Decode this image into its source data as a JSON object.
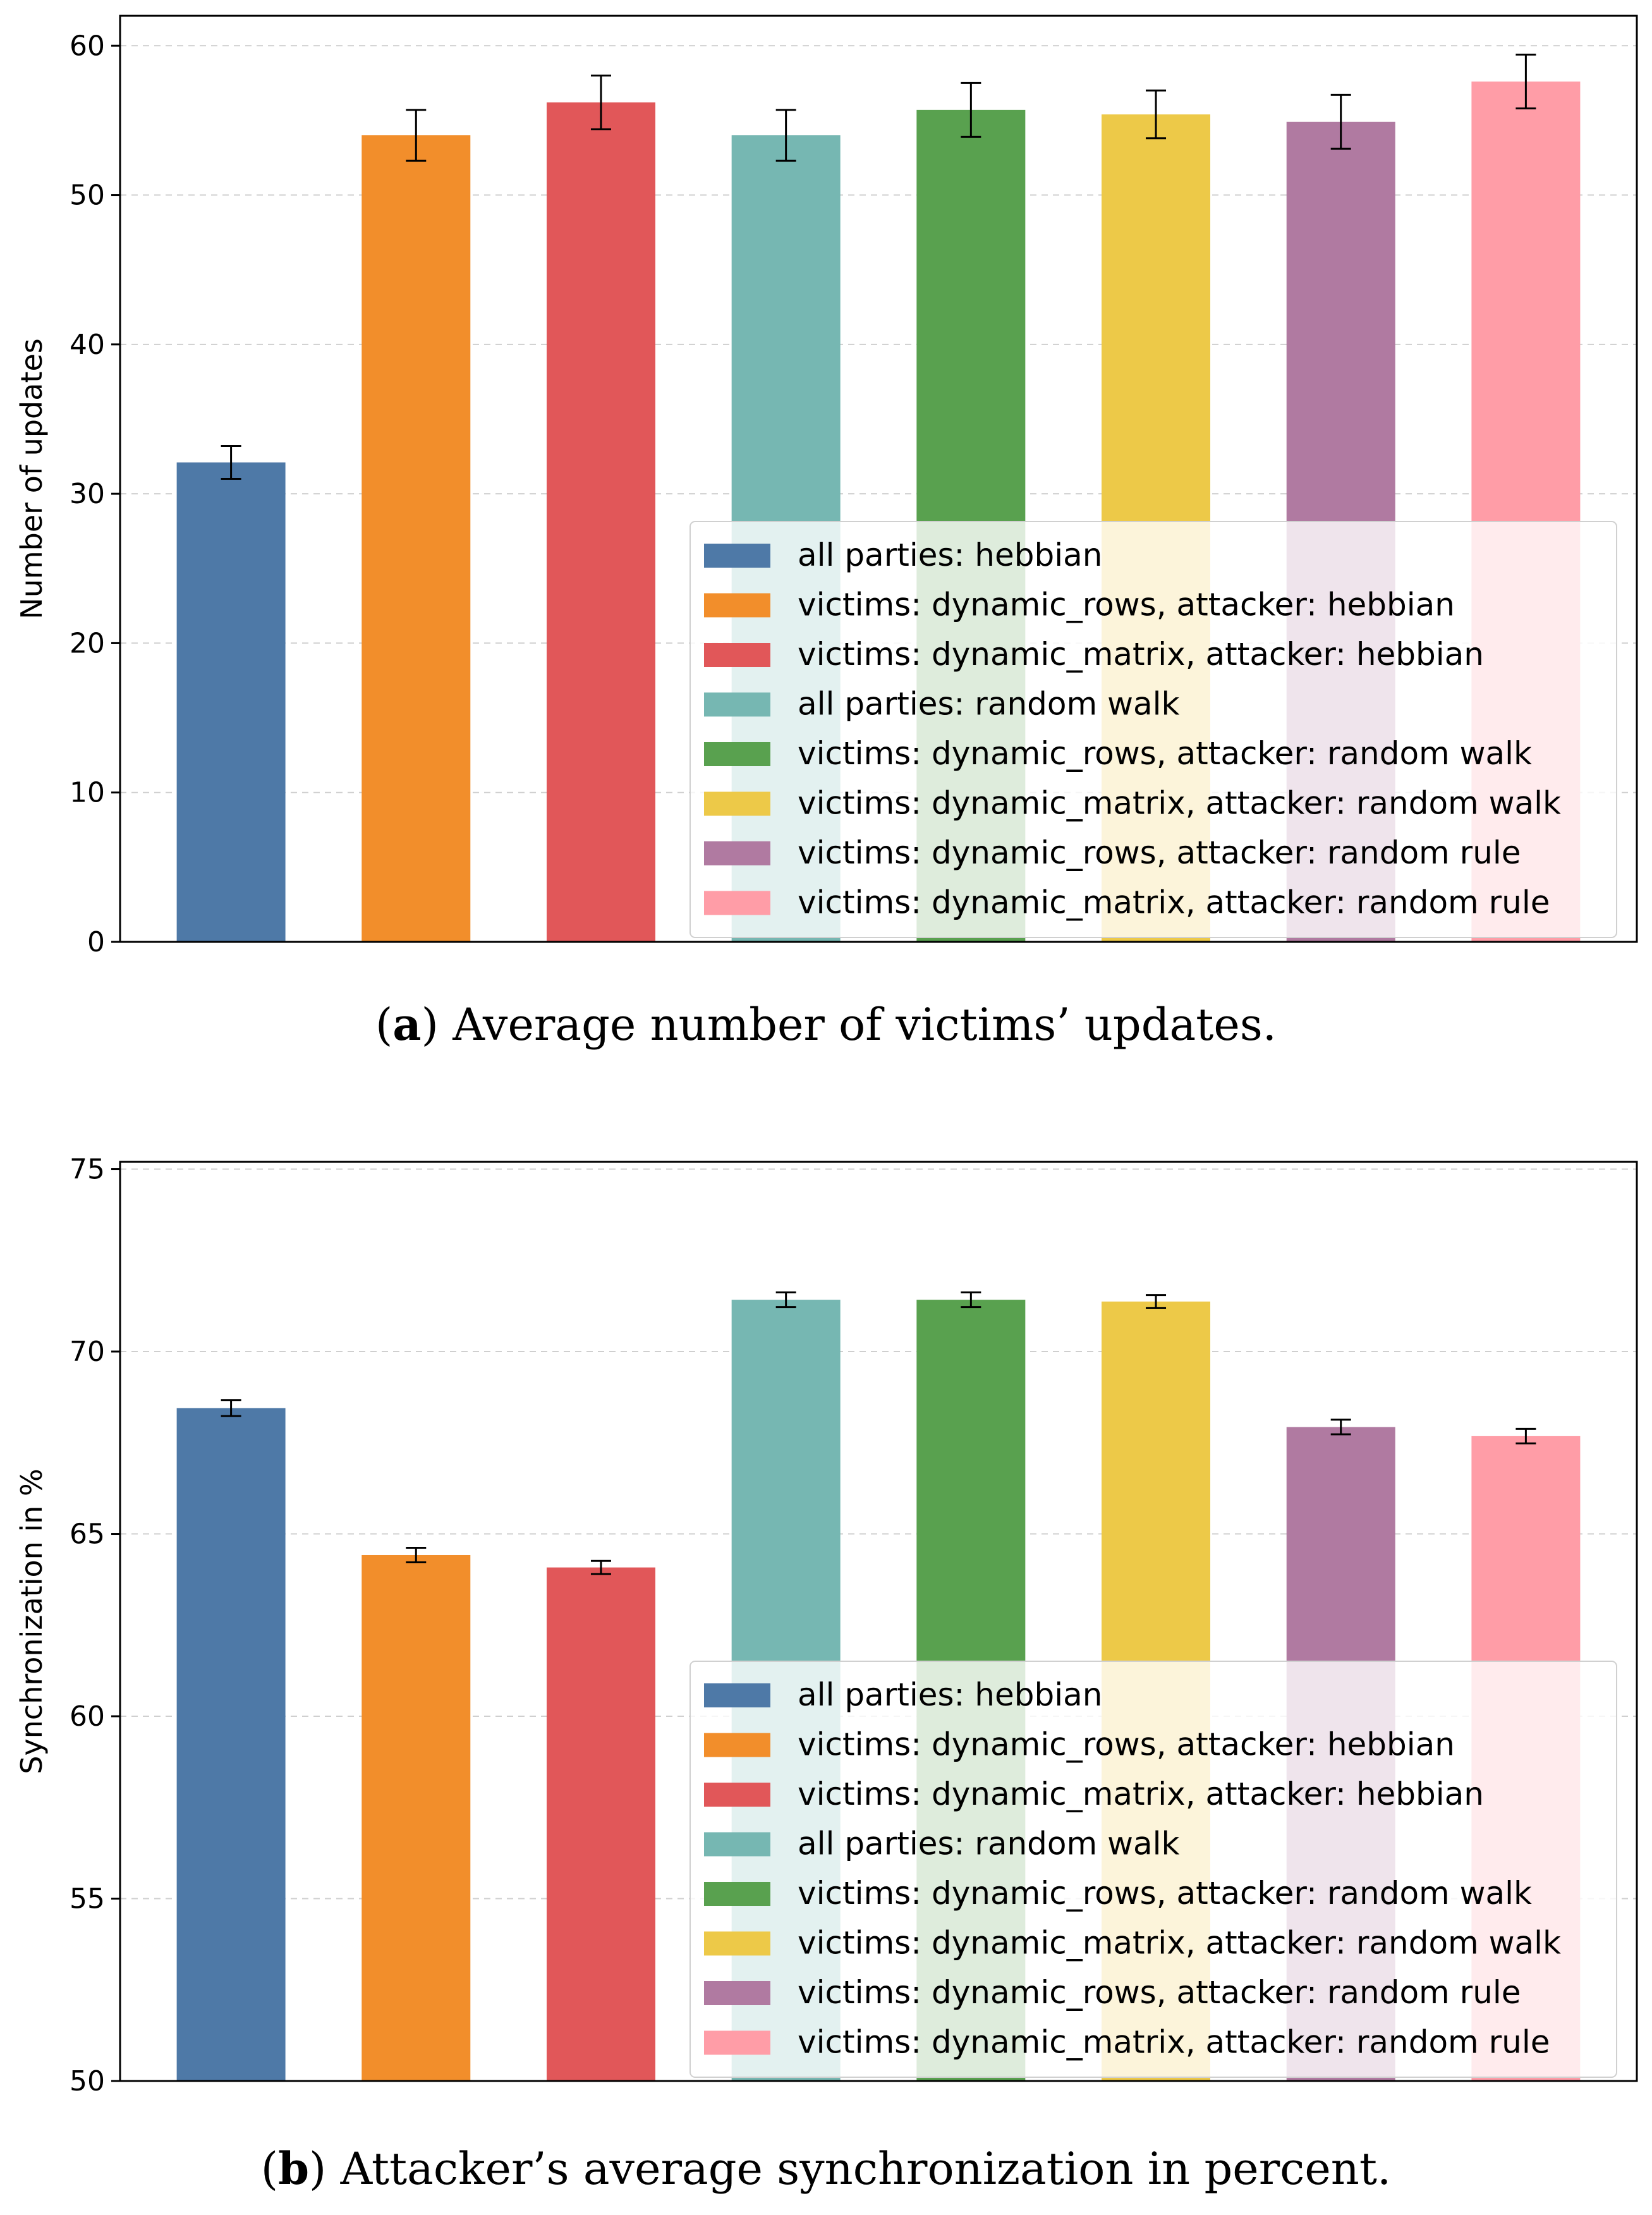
{
  "chart_data": [
    {
      "type": "bar",
      "panel": "a",
      "caption_letter": "a",
      "caption_text": ") Average number of victims’ updates.",
      "ylabel": "Number of updates",
      "xlabel": "",
      "ylim": [
        0,
        62
      ],
      "yticks": [
        0,
        10,
        20,
        30,
        40,
        50,
        60
      ],
      "grid": true,
      "legend_position": "lower-right",
      "categories": [
        "all parties: hebbian",
        "victims: dynamic_rows, attacker: hebbian",
        "victims: dynamic_matrix, attacker: hebbian",
        "all parties: random walk",
        "victims: dynamic_rows, attacker: random walk",
        "victims: dynamic_matrix, attacker: random walk",
        "victims: dynamic_rows, attacker: random rule",
        "victims: dynamic_matrix, attacker: random rule"
      ],
      "values": [
        32.1,
        54.0,
        56.2,
        54.0,
        55.7,
        55.4,
        54.9,
        57.6
      ],
      "errors": [
        1.1,
        1.7,
        1.8,
        1.7,
        1.8,
        1.6,
        1.8,
        1.8
      ],
      "colors": [
        "#4e79a7",
        "#f28e2b",
        "#e15759",
        "#76b7b2",
        "#59a14f",
        "#edc948",
        "#b07aa1",
        "#ff9da7"
      ]
    },
    {
      "type": "bar",
      "panel": "b",
      "caption_letter": "b",
      "caption_text": ") Attacker’s average synchronization in percent.",
      "ylabel": "Synchronization in %",
      "xlabel": "",
      "ylim": [
        50,
        75.2
      ],
      "yticks": [
        50,
        55,
        60,
        65,
        70,
        75
      ],
      "grid": true,
      "legend_position": "lower-right",
      "categories": [
        "all parties: hebbian",
        "victims: dynamic_rows, attacker: hebbian",
        "victims: dynamic_matrix, attacker: hebbian",
        "all parties: random walk",
        "victims: dynamic_rows, attacker: random walk",
        "victims: dynamic_matrix, attacker: random walk",
        "victims: dynamic_rows, attacker: random rule",
        "victims: dynamic_matrix, attacker: random rule"
      ],
      "values": [
        68.45,
        64.42,
        64.08,
        71.42,
        71.42,
        71.37,
        67.93,
        67.68
      ],
      "errors": [
        0.22,
        0.2,
        0.18,
        0.2,
        0.2,
        0.18,
        0.2,
        0.2
      ],
      "colors": [
        "#4e79a7",
        "#f28e2b",
        "#e15759",
        "#76b7b2",
        "#59a14f",
        "#edc948",
        "#b07aa1",
        "#ff9da7"
      ]
    }
  ]
}
